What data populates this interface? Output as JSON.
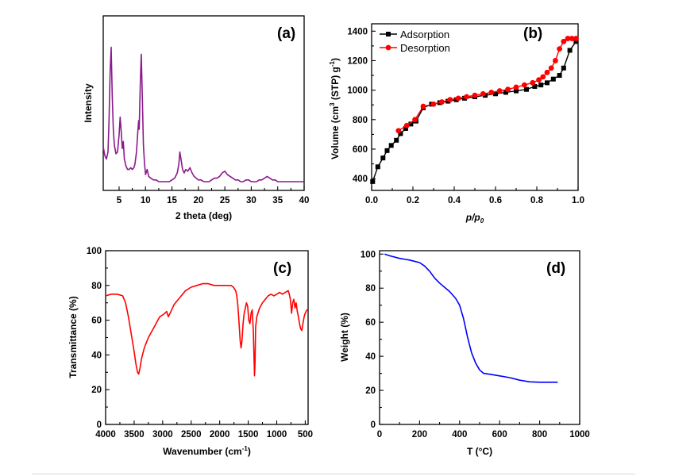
{
  "chart_data": [
    {
      "id": "a",
      "panel_label": "(a)",
      "type": "line",
      "xlabel": "2 theta (deg)",
      "ylabel": "Intensity",
      "xlim": [
        2,
        40
      ],
      "ylim": [
        0,
        100
      ],
      "xticks": [
        "5",
        "10",
        "15",
        "20",
        "25",
        "30",
        "35",
        "40"
      ],
      "yticks": [],
      "color": "#8b1a8b",
      "series": [
        {
          "points": [
            [
              2.0,
              25
            ],
            [
              2.3,
              20
            ],
            [
              2.6,
              18
            ],
            [
              2.9,
              22
            ],
            [
              3.1,
              40
            ],
            [
              3.3,
              68
            ],
            [
              3.5,
              82
            ],
            [
              3.7,
              55
            ],
            [
              3.9,
              35
            ],
            [
              4.1,
              26
            ],
            [
              4.4,
              21
            ],
            [
              4.7,
              22
            ],
            [
              5.0,
              32
            ],
            [
              5.2,
              42
            ],
            [
              5.4,
              34
            ],
            [
              5.6,
              24
            ],
            [
              5.8,
              28
            ],
            [
              6.0,
              18
            ],
            [
              6.3,
              14
            ],
            [
              6.6,
              12
            ],
            [
              6.9,
              12
            ],
            [
              7.2,
              13
            ],
            [
              7.5,
              12
            ],
            [
              7.8,
              13
            ],
            [
              8.0,
              15
            ],
            [
              8.3,
              22
            ],
            [
              8.5,
              32
            ],
            [
              8.7,
              40
            ],
            [
              8.8,
              35
            ],
            [
              9.0,
              60
            ],
            [
              9.2,
              78
            ],
            [
              9.4,
              52
            ],
            [
              9.6,
              26
            ],
            [
              9.8,
              16
            ],
            [
              10.0,
              9
            ],
            [
              10.3,
              12
            ],
            [
              10.6,
              8
            ],
            [
              11,
              7
            ],
            [
              11.5,
              6
            ],
            [
              12,
              6
            ],
            [
              12.5,
              5
            ],
            [
              13,
              5
            ],
            [
              13.5,
              5
            ],
            [
              14,
              5
            ],
            [
              14.5,
              5
            ],
            [
              15,
              6
            ],
            [
              15.5,
              7
            ],
            [
              16,
              10
            ],
            [
              16.3,
              15
            ],
            [
              16.5,
              22
            ],
            [
              16.7,
              18
            ],
            [
              17.0,
              12
            ],
            [
              17.3,
              10
            ],
            [
              17.6,
              12
            ],
            [
              18.0,
              11
            ],
            [
              18.4,
              13
            ],
            [
              18.8,
              10
            ],
            [
              19.2,
              8
            ],
            [
              19.6,
              7
            ],
            [
              20,
              6
            ],
            [
              20.5,
              6
            ],
            [
              21,
              5
            ],
            [
              21.5,
              5
            ],
            [
              22,
              5
            ],
            [
              22.5,
              6
            ],
            [
              23,
              7
            ],
            [
              23.5,
              7
            ],
            [
              24,
              8
            ],
            [
              24.5,
              10
            ],
            [
              25,
              11
            ],
            [
              25.5,
              9
            ],
            [
              26,
              8
            ],
            [
              26.5,
              7
            ],
            [
              27,
              6
            ],
            [
              27.5,
              6
            ],
            [
              28,
              5
            ],
            [
              28.5,
              5
            ],
            [
              29,
              6
            ],
            [
              29.5,
              6
            ],
            [
              30,
              5
            ],
            [
              30.5,
              5
            ],
            [
              31,
              5
            ],
            [
              31.5,
              6
            ],
            [
              32,
              6
            ],
            [
              32.5,
              7
            ],
            [
              33,
              8
            ],
            [
              33.5,
              7
            ],
            [
              34,
              6
            ],
            [
              34.5,
              6
            ],
            [
              35,
              5
            ],
            [
              35.5,
              5
            ],
            [
              36,
              5
            ],
            [
              36.5,
              5
            ],
            [
              37,
              5
            ],
            [
              37.5,
              5
            ],
            [
              38,
              5
            ],
            [
              38.5,
              5
            ],
            [
              39,
              5
            ],
            [
              39.5,
              5
            ],
            [
              40,
              5
            ]
          ]
        }
      ]
    },
    {
      "id": "b",
      "panel_label": "(b)",
      "type": "line",
      "xlabel_main": "p/p",
      "xlabel_sub": "0",
      "ylabel_pre": "Volume (cm",
      "ylabel_sup": "3",
      "ylabel_post": " (STP) g",
      "ylabel_sup2": "-1",
      "ylabel_end": ")",
      "xlim": [
        0,
        1
      ],
      "ylim": [
        320,
        1450
      ],
      "xticks": [
        "0.0",
        "0.2",
        "0.4",
        "0.6",
        "0.8",
        "1.0"
      ],
      "yticks": [
        "400",
        "600",
        "800",
        "1000",
        "1200",
        "1400"
      ],
      "legend": {
        "position": "top-left"
      },
      "series": [
        {
          "name": "Adsorption",
          "color": "#000000",
          "marker": "square",
          "x": [
            0.005,
            0.03,
            0.055,
            0.075,
            0.095,
            0.12,
            0.14,
            0.165,
            0.19,
            0.215,
            0.25,
            0.29,
            0.33,
            0.37,
            0.41,
            0.45,
            0.5,
            0.55,
            0.6,
            0.65,
            0.7,
            0.75,
            0.79,
            0.82,
            0.85,
            0.88,
            0.91,
            0.93,
            0.96,
            0.99
          ],
          "y": [
            380,
            480,
            540,
            590,
            625,
            660,
            705,
            740,
            770,
            790,
            880,
            905,
            915,
            925,
            935,
            945,
            955,
            965,
            975,
            985,
            995,
            1005,
            1025,
            1035,
            1050,
            1075,
            1100,
            1150,
            1270,
            1330
          ]
        },
        {
          "name": "Desorption",
          "color": "#ff0000",
          "marker": "circle",
          "x": [
            0.99,
            0.97,
            0.95,
            0.93,
            0.91,
            0.89,
            0.87,
            0.85,
            0.83,
            0.81,
            0.78,
            0.74,
            0.7,
            0.66,
            0.62,
            0.58,
            0.54,
            0.5,
            0.46,
            0.42,
            0.38,
            0.34,
            0.3,
            0.25,
            0.21,
            0.17,
            0.13
          ],
          "y": [
            1350,
            1350,
            1350,
            1330,
            1280,
            1200,
            1150,
            1120,
            1090,
            1070,
            1050,
            1035,
            1020,
            1005,
            995,
            985,
            975,
            965,
            955,
            945,
            935,
            920,
            905,
            890,
            800,
            760,
            725
          ]
        }
      ]
    },
    {
      "id": "c",
      "panel_label": "(c)",
      "type": "line",
      "xlabel_main": "Wavenumber (cm",
      "xlabel_sup": "-1",
      "xlabel_end": ")",
      "ylabel": "Transmittance (%)",
      "xlim": [
        4000,
        450
      ],
      "ylim": [
        0,
        100
      ],
      "xticks": [
        "4000",
        "3500",
        "3000",
        "2500",
        "2000",
        "1500",
        "1000",
        "500"
      ],
      "yticks": [
        "0",
        "20",
        "40",
        "60",
        "80",
        "100"
      ],
      "color": "#ff0000",
      "series": [
        {
          "points": [
            [
              4000,
              74
            ],
            [
              3900,
              75
            ],
            [
              3800,
              75
            ],
            [
              3700,
              74
            ],
            [
              3650,
              70
            ],
            [
              3600,
              62
            ],
            [
              3550,
              52
            ],
            [
              3500,
              42
            ],
            [
              3470,
              35
            ],
            [
              3440,
              30
            ],
            [
              3420,
              29
            ],
            [
              3400,
              32
            ],
            [
              3370,
              38
            ],
            [
              3330,
              43
            ],
            [
              3300,
              46
            ],
            [
              3250,
              50
            ],
            [
              3200,
              53
            ],
            [
              3150,
              56
            ],
            [
              3100,
              59
            ],
            [
              3050,
              62
            ],
            [
              3000,
              63
            ],
            [
              2960,
              64
            ],
            [
              2930,
              65
            ],
            [
              2900,
              62
            ],
            [
              2870,
              64
            ],
            [
              2800,
              69
            ],
            [
              2700,
              73
            ],
            [
              2600,
              77
            ],
            [
              2500,
              79
            ],
            [
              2400,
              80
            ],
            [
              2300,
              81
            ],
            [
              2200,
              81
            ],
            [
              2100,
              80
            ],
            [
              2000,
              80
            ],
            [
              1900,
              80
            ],
            [
              1800,
              80
            ],
            [
              1760,
              79
            ],
            [
              1720,
              77
            ],
            [
              1700,
              74
            ],
            [
              1680,
              68
            ],
            [
              1660,
              58
            ],
            [
              1640,
              48
            ],
            [
              1625,
              44
            ],
            [
              1610,
              48
            ],
            [
              1590,
              58
            ],
            [
              1570,
              64
            ],
            [
              1550,
              67
            ],
            [
              1530,
              70
            ],
            [
              1510,
              68
            ],
            [
              1490,
              60
            ],
            [
              1470,
              58
            ],
            [
              1450,
              64
            ],
            [
              1430,
              66
            ],
            [
              1410,
              54
            ],
            [
              1400,
              40
            ],
            [
              1390,
              28
            ],
            [
              1380,
              36
            ],
            [
              1370,
              56
            ],
            [
              1350,
              62
            ],
            [
              1300,
              67
            ],
            [
              1250,
              70
            ],
            [
              1200,
              72
            ],
            [
              1150,
              74
            ],
            [
              1100,
              75
            ],
            [
              1050,
              74
            ],
            [
              1000,
              75
            ],
            [
              950,
              76
            ],
            [
              900,
              75
            ],
            [
              850,
              76
            ],
            [
              800,
              77
            ],
            [
              780,
              75
            ],
            [
              760,
              72
            ],
            [
              740,
              64
            ],
            [
              720,
              70
            ],
            [
              700,
              72
            ],
            [
              680,
              67
            ],
            [
              660,
              70
            ],
            [
              640,
              65
            ],
            [
              620,
              62
            ],
            [
              600,
              58
            ],
            [
              580,
              55
            ],
            [
              560,
              54
            ],
            [
              540,
              58
            ],
            [
              520,
              62
            ],
            [
              500,
              64
            ],
            [
              470,
              66
            ],
            [
              450,
              66
            ]
          ]
        }
      ]
    },
    {
      "id": "d",
      "panel_label": "(d)",
      "type": "line",
      "xlabel": "T (°C)",
      "ylabel": "Weight (%)",
      "xlim": [
        0,
        1000
      ],
      "ylim": [
        0,
        102
      ],
      "xticks": [
        "0",
        "200",
        "400",
        "600",
        "800",
        "1000"
      ],
      "yticks": [
        "0",
        "20",
        "40",
        "60",
        "80",
        "100"
      ],
      "color": "#0000ff",
      "series": [
        {
          "points": [
            [
              25,
              100
            ],
            [
              50,
              99
            ],
            [
              100,
              97.5
            ],
            [
              150,
              96.5
            ],
            [
              200,
              95
            ],
            [
              225,
              93
            ],
            [
              250,
              90
            ],
            [
              275,
              86
            ],
            [
              300,
              83
            ],
            [
              350,
              78
            ],
            [
              380,
              74
            ],
            [
              400,
              70
            ],
            [
              420,
              62
            ],
            [
              440,
              51
            ],
            [
              460,
              42
            ],
            [
              480,
              36
            ],
            [
              500,
              32
            ],
            [
              520,
              30
            ],
            [
              550,
              29.5
            ],
            [
              600,
              28.5
            ],
            [
              650,
              27.5
            ],
            [
              700,
              26
            ],
            [
              750,
              25
            ],
            [
              800,
              24.8
            ],
            [
              850,
              24.8
            ],
            [
              890,
              24.8
            ]
          ]
        }
      ]
    }
  ]
}
